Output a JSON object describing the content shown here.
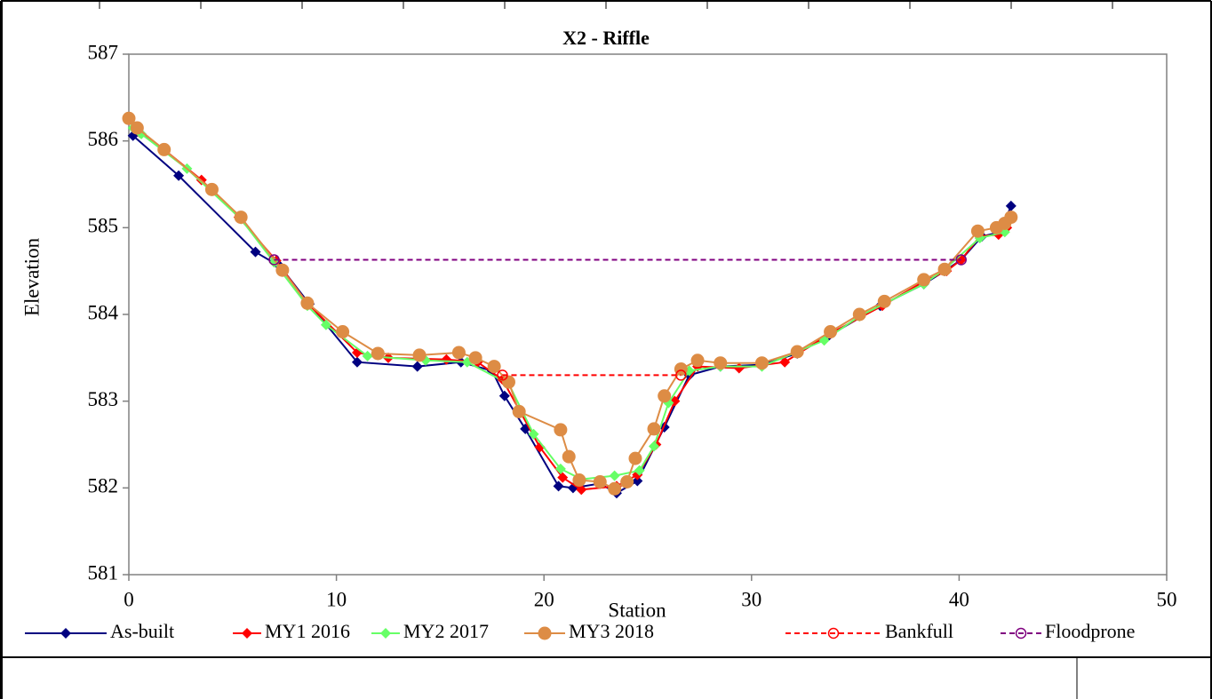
{
  "chart_data": {
    "type": "line",
    "title": "X2 - Riffle",
    "x_label": "Station",
    "y_label": "Elevation",
    "xlim": [
      0,
      50
    ],
    "ylim": [
      581,
      587
    ],
    "xticks": [
      0,
      10,
      20,
      30,
      40,
      50
    ],
    "yticks": [
      581,
      582,
      583,
      584,
      585,
      586,
      587
    ],
    "grid": false,
    "legend": "bottom",
    "series": [
      {
        "name": "As-built",
        "color": "#000080",
        "marker": "diamond",
        "dash": false,
        "x": [
          0.2,
          2.4,
          6.1,
          7.3,
          8.7,
          11.0,
          13.9,
          16.0,
          17.5,
          18.1,
          19.1,
          20.7,
          21.4,
          22.7,
          23.5,
          24.5,
          25.8,
          27.0,
          28.5,
          30.5,
          32.2,
          33.7,
          36.2,
          38.3,
          39.3,
          40.1,
          41.1,
          42.0,
          42.5
        ],
        "values": [
          586.06,
          585.6,
          584.72,
          584.55,
          584.12,
          583.45,
          583.4,
          583.45,
          583.35,
          583.06,
          582.68,
          582.02,
          582.0,
          582.05,
          581.94,
          582.08,
          582.7,
          583.3,
          583.4,
          583.42,
          583.55,
          583.75,
          584.1,
          584.35,
          584.5,
          584.63,
          584.9,
          584.95,
          585.25
        ]
      },
      {
        "name": "MY1 2016",
        "color": "#ff0000",
        "marker": "diamond",
        "dash": false,
        "x": [
          0,
          0.5,
          1.7,
          3.5,
          5.3,
          7.1,
          8.6,
          11.0,
          12.5,
          15.3,
          16.8,
          18.0,
          19.8,
          20.9,
          21.8,
          23.5,
          24.5,
          25.4,
          26.3,
          27.4,
          29.4,
          31.6,
          33.8,
          36.3,
          38.3,
          39.4,
          40.1,
          41.0,
          41.9,
          42.3
        ],
        "values": [
          586.25,
          586.1,
          585.9,
          585.55,
          585.12,
          584.62,
          584.13,
          583.56,
          583.5,
          583.48,
          583.45,
          583.25,
          582.47,
          582.12,
          581.98,
          582.02,
          582.15,
          582.5,
          583.0,
          583.4,
          583.38,
          583.45,
          583.78,
          584.1,
          584.38,
          584.5,
          584.63,
          584.9,
          584.92,
          585.0
        ]
      },
      {
        "name": "MY2 2017",
        "color": "#66ff66",
        "marker": "diamond",
        "dash": false,
        "x": [
          0.2,
          0.6,
          2.8,
          5.4,
          7.0,
          8.6,
          9.5,
          11.5,
          14.3,
          16.3,
          18.3,
          19.5,
          20.8,
          21.8,
          23.4,
          24.6,
          25.3,
          26.0,
          27.0,
          28.5,
          30.5,
          33.5,
          35.2,
          38.3,
          39.3,
          41.0,
          42.2
        ],
        "values": [
          586.15,
          586.08,
          585.68,
          585.1,
          584.6,
          584.1,
          583.88,
          583.52,
          583.47,
          583.45,
          583.2,
          582.62,
          582.22,
          582.1,
          582.14,
          582.2,
          582.48,
          582.98,
          583.35,
          583.4,
          583.4,
          583.7,
          583.98,
          584.35,
          584.52,
          584.88,
          584.95
        ]
      },
      {
        "name": "MY3 2018",
        "color": "#dd8c45",
        "marker": "circle",
        "dash": false,
        "x": [
          0,
          0.4,
          1.7,
          4.0,
          5.4,
          7.4,
          8.6,
          10.3,
          12.0,
          14.0,
          15.9,
          16.7,
          17.6,
          18.3,
          18.8,
          20.8,
          21.2,
          21.7,
          22.7,
          23.4,
          24.0,
          24.4,
          25.3,
          25.8,
          26.6,
          27.4,
          28.5,
          30.5,
          32.2,
          33.8,
          35.2,
          36.4,
          38.3,
          39.3,
          40.9,
          41.8,
          42.2,
          42.5
        ],
        "values": [
          586.26,
          586.15,
          585.9,
          585.44,
          585.12,
          584.51,
          584.13,
          583.8,
          583.55,
          583.53,
          583.56,
          583.5,
          583.4,
          583.22,
          582.88,
          582.67,
          582.36,
          582.09,
          582.07,
          581.99,
          582.07,
          582.34,
          582.68,
          583.06,
          583.37,
          583.47,
          583.44,
          583.44,
          583.57,
          583.8,
          584.0,
          584.15,
          584.4,
          584.52,
          584.96,
          585.0,
          585.05,
          585.12
        ]
      },
      {
        "name": "Bankfull",
        "color": "#ff0000",
        "marker": "open-circle",
        "dash": true,
        "x": [
          18.0,
          26.6
        ],
        "values": [
          583.3,
          583.3
        ]
      },
      {
        "name": "Floodprone",
        "color": "#800080",
        "marker": "open-circle",
        "dash": true,
        "x": [
          7.0,
          40.1
        ],
        "values": [
          584.63,
          584.63
        ]
      }
    ]
  }
}
